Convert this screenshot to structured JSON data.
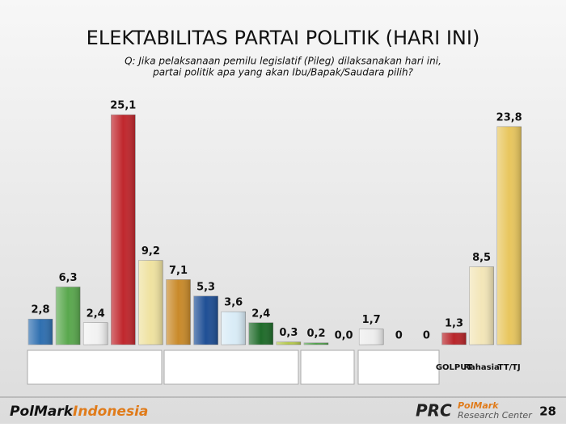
{
  "chart_data": {
    "type": "bar",
    "title": "ELEKTABILITAS PARTAI POLITIK (HARI INI)",
    "subtitle": [
      "Q: Jika pelaksanaan pemilu legislatif (Pileg) dilaksanakan hari ini,",
      "partai politik apa yang akan Ibu/Bapak/Saudara pilih?"
    ],
    "categories": [
      null,
      null,
      null,
      null,
      null,
      null,
      null,
      null,
      null,
      null,
      null,
      null,
      null,
      null,
      null,
      "GOLPUT",
      "Rahasia",
      "TT/TJ"
    ],
    "values": [
      2.8,
      6.3,
      2.4,
      25.1,
      9.2,
      7.1,
      5.3,
      3.6,
      2.4,
      0.3,
      0.2,
      0.0,
      1.7,
      0,
      0,
      1.3,
      8.5,
      23.8
    ],
    "value_labels": [
      "2,8",
      "6,3",
      "2,4",
      "25,1",
      "9,2",
      "7,1",
      "5,3",
      "3,6",
      "2,4",
      "0,3",
      "0,2",
      "0,0",
      "1,7",
      "0",
      "0",
      "1,3",
      "8,5",
      "23,8"
    ],
    "colors": [
      "#2f6fb0",
      "#5aa84e",
      "#f2f2f2",
      "#c0272d",
      "#efe2a0",
      "#c98a2a",
      "#1f4f95",
      "#d9ecf7",
      "#1f6b2a",
      "#b5c94a",
      "#4fa04a",
      "#dddddd",
      "#eeeeee",
      "#dddddd",
      "#dddddd",
      "#b8252a",
      "#f3e6b8",
      "#e8c65e"
    ]
  },
  "footer": {
    "brand_left": "PolMark",
    "brand_right": "Indonesia",
    "logo": "PRC",
    "logo_line1": "PolMark",
    "logo_line2": "Research Center",
    "page": "28"
  }
}
